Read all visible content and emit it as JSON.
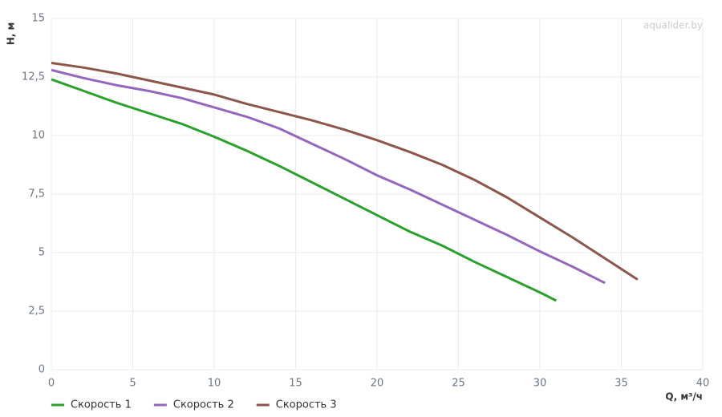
{
  "chart_data": {
    "type": "line",
    "watermark": "aqualider.by",
    "y_label": "H, м",
    "x_label": "Q, м³/ч",
    "xlim": [
      0,
      40
    ],
    "xticks": [
      0,
      5,
      10,
      15,
      20,
      25,
      30,
      35,
      40
    ],
    "ylim": [
      0,
      15
    ],
    "yticks": [
      0,
      {
        "value": 2.5,
        "label": "2,5"
      },
      5,
      {
        "value": 7.5,
        "label": "7,5"
      },
      10,
      {
        "value": 12.5,
        "label": "12,5"
      },
      15
    ],
    "grid": true,
    "legend": "bottom-left",
    "series": [
      {
        "name": "Скорость 1",
        "color": "#2ca02c",
        "x": [
          0,
          2,
          4,
          6,
          8,
          10,
          12,
          14,
          16,
          18,
          20,
          22,
          24,
          26,
          28,
          30,
          31
        ],
        "values": [
          12.4,
          11.9,
          11.4,
          10.95,
          10.5,
          9.95,
          9.35,
          8.7,
          8.0,
          7.3,
          6.6,
          5.9,
          5.3,
          4.6,
          3.95,
          3.3,
          2.95
        ]
      },
      {
        "name": "Скорость 2",
        "color": "#9467bd",
        "x": [
          0,
          2,
          4,
          6,
          8,
          10,
          12,
          14,
          16,
          18,
          20,
          22,
          24,
          26,
          28,
          30,
          32,
          34
        ],
        "values": [
          12.8,
          12.45,
          12.15,
          11.9,
          11.6,
          11.2,
          10.8,
          10.3,
          9.65,
          9.0,
          8.3,
          7.7,
          7.05,
          6.4,
          5.75,
          5.05,
          4.4,
          3.7
        ]
      },
      {
        "name": "Скорость 3",
        "color": "#8c564b",
        "x": [
          0,
          2,
          4,
          6,
          8,
          10,
          12,
          14,
          16,
          18,
          20,
          22,
          24,
          26,
          28,
          30,
          32,
          34,
          36
        ],
        "values": [
          13.1,
          12.9,
          12.65,
          12.35,
          12.05,
          11.75,
          11.35,
          11.0,
          10.65,
          10.25,
          9.8,
          9.3,
          8.75,
          8.1,
          7.35,
          6.5,
          5.65,
          4.75,
          3.85
        ]
      }
    ]
  }
}
